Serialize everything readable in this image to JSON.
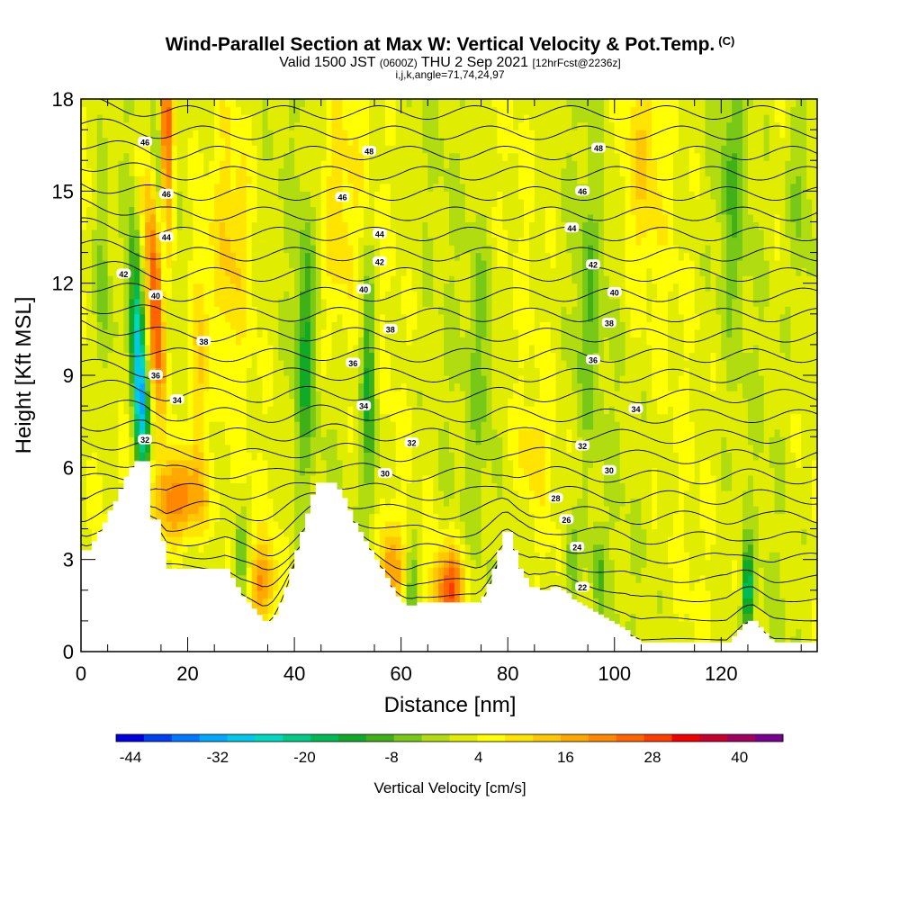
{
  "header": {
    "title_main": "Wind-Parallel Section at Max W: Vertical Velocity & Pot.Temp.",
    "title_mark": "(C)",
    "valid_pre": "Valid 1500 JST",
    "valid_z": "(0600Z)",
    "valid_date": "THU 2 Sep 2021",
    "valid_fcst": "[12hrFcst@2236z]",
    "indices": "i,j,k,angle=71,74,24,97"
  },
  "chart_data": {
    "type": "heatmap",
    "xlabel": "Distance [nm]",
    "ylabel": "Height [Kft MSL]",
    "xlim": [
      0,
      138
    ],
    "ylim": [
      0,
      18
    ],
    "xticks": [
      "0",
      "20",
      "40",
      "60",
      "80",
      "100",
      "120"
    ],
    "yticks": [
      "0",
      "3",
      "6",
      "9",
      "12",
      "15",
      "18"
    ],
    "xtick_values": [
      0,
      20,
      40,
      60,
      80,
      100,
      120
    ],
    "ytick_values": [
      0,
      3,
      6,
      9,
      12,
      15,
      18
    ],
    "terrain": {
      "x": [
        0,
        1,
        2,
        3,
        4,
        5,
        6,
        7,
        8,
        9,
        10,
        11,
        12,
        13,
        14,
        15,
        16,
        17,
        18,
        19,
        20,
        21,
        22,
        23,
        24,
        25,
        26,
        27,
        28,
        29,
        30,
        31,
        32,
        33,
        34,
        35,
        36,
        37,
        38,
        39,
        40,
        41,
        42,
        43,
        44,
        45,
        46,
        47,
        48,
        49,
        50,
        51,
        52,
        53,
        54,
        55,
        56,
        57,
        58,
        59,
        60,
        61,
        62,
        63,
        64,
        65,
        66,
        67,
        68,
        69,
        70,
        71,
        72,
        73,
        74,
        75,
        76,
        77,
        78,
        79,
        80,
        81,
        82,
        83,
        84,
        85,
        86,
        87,
        88,
        89,
        90,
        91,
        92,
        93,
        94,
        95,
        96,
        97,
        98,
        99,
        100,
        101,
        102,
        103,
        104,
        105,
        106,
        107,
        108,
        109,
        110,
        111,
        112,
        113,
        114,
        115,
        116,
        117,
        118,
        119,
        120,
        121,
        122,
        123,
        124,
        125,
        126,
        127,
        128,
        129,
        130,
        131,
        132,
        133,
        134,
        135,
        136,
        137,
        138
      ],
      "y": [
        3.3,
        3.3,
        3.6,
        3.9,
        4.2,
        4.6,
        4.9,
        5.3,
        5.7,
        6.0,
        6.2,
        6.2,
        6.2,
        4.3,
        4.3,
        3.6,
        2.7,
        2.7,
        2.7,
        2.7,
        2.7,
        2.7,
        2.7,
        2.7,
        2.7,
        2.7,
        2.7,
        2.7,
        2.4,
        2.1,
        1.8,
        1.6,
        1.4,
        1.2,
        1.0,
        1.0,
        1.2,
        1.6,
        2.1,
        2.7,
        3.3,
        3.9,
        4.5,
        5.1,
        5.5,
        5.5,
        5.5,
        5.5,
        5.3,
        5.0,
        4.6,
        4.2,
        3.9,
        3.6,
        3.3,
        3.0,
        2.7,
        2.4,
        2.1,
        1.8,
        1.6,
        1.5,
        1.5,
        1.6,
        1.6,
        1.6,
        1.6,
        1.6,
        1.6,
        1.6,
        1.6,
        1.6,
        1.6,
        1.6,
        1.6,
        1.8,
        2.2,
        2.7,
        3.3,
        3.9,
        3.9,
        3.3,
        2.7,
        2.4,
        2.1,
        2.1,
        2.0,
        2.0,
        2.1,
        2.1,
        2.0,
        1.9,
        1.7,
        1.6,
        1.5,
        1.4,
        1.3,
        1.2,
        1.1,
        1.0,
        0.9,
        0.8,
        0.7,
        0.5,
        0.4,
        0.3,
        0.3,
        0.3,
        0.3,
        0.3,
        0.3,
        0.3,
        0.3,
        0.3,
        0.3,
        0.3,
        0.3,
        0.3,
        0.3,
        0.3,
        0.3,
        0.3,
        0.5,
        0.7,
        0.9,
        1.0,
        1.0,
        0.8,
        0.6,
        0.4,
        0.3,
        0.3,
        0.3,
        0.3,
        0.3,
        0.3,
        0.3,
        0.3,
        0.3
      ]
    },
    "updrafts": [
      {
        "x": 14,
        "h": 11.5,
        "w": 2.0,
        "tilt": -0.28,
        "v": 28
      },
      {
        "x": 18,
        "h": 5.0,
        "w": 5.0,
        "tilt": 0.0,
        "v": 22
      },
      {
        "x": 16,
        "h": 17.0,
        "w": 1.3,
        "tilt": -0.05,
        "v": 24
      },
      {
        "x": 22,
        "h": 9.0,
        "w": 1.5,
        "tilt": 0.05,
        "v": 12
      },
      {
        "x": 34,
        "h": 2.3,
        "w": 2.5,
        "tilt": 0.0,
        "v": 16
      },
      {
        "x": 58,
        "h": 2.7,
        "w": 2.5,
        "tilt": 0.0,
        "v": 14
      },
      {
        "x": 69,
        "h": 2.0,
        "w": 3.0,
        "tilt": 0.0,
        "v": 26
      },
      {
        "x": 28,
        "h": 13.0,
        "w": 3.5,
        "tilt": 0.1,
        "v": 8
      },
      {
        "x": 48,
        "h": 14.0,
        "w": 4.0,
        "tilt": 0.1,
        "v": 8
      },
      {
        "x": 105,
        "h": 16.0,
        "w": 4.0,
        "tilt": 0.05,
        "v": 8
      },
      {
        "x": 85,
        "h": 6.5,
        "w": 3.0,
        "tilt": 0.0,
        "v": 7
      }
    ],
    "downdrafts": [
      {
        "x": 11,
        "h": 9.0,
        "w": 1.4,
        "tilt": -0.25,
        "v": -34
      },
      {
        "x": 15,
        "h": 14.0,
        "w": 1.0,
        "tilt": -0.25,
        "v": -14
      },
      {
        "x": 4,
        "h": 12.0,
        "w": 1.5,
        "tilt": 0.0,
        "v": -10
      },
      {
        "x": 42,
        "h": 10.0,
        "w": 1.8,
        "tilt": 0.1,
        "v": -14
      },
      {
        "x": 54,
        "h": 8.5,
        "w": 1.4,
        "tilt": -0.05,
        "v": -16
      },
      {
        "x": 30,
        "h": 3.0,
        "w": 1.5,
        "tilt": 0.0,
        "v": -12
      },
      {
        "x": 62,
        "h": 2.0,
        "w": 1.2,
        "tilt": 0.0,
        "v": -12
      },
      {
        "x": 92,
        "h": 2.8,
        "w": 1.2,
        "tilt": 0.0,
        "v": -12
      },
      {
        "x": 97,
        "h": 2.6,
        "w": 1.2,
        "tilt": 0.0,
        "v": -10
      },
      {
        "x": 125,
        "h": 2.0,
        "w": 1.0,
        "tilt": 0.0,
        "v": -22
      },
      {
        "x": 75,
        "h": 10.0,
        "w": 2.5,
        "tilt": 0.05,
        "v": -6
      },
      {
        "x": 95,
        "h": 11.0,
        "w": 2.5,
        "tilt": 0.05,
        "v": -8
      },
      {
        "x": 122,
        "h": 15.0,
        "w": 2.5,
        "tilt": 0.0,
        "v": -8
      },
      {
        "x": 135,
        "h": 15.0,
        "w": 2.5,
        "tilt": 0.0,
        "v": -8
      }
    ],
    "contour_labels": [
      {
        "text": "46",
        "x": 12,
        "y": 16.6
      },
      {
        "text": "46",
        "x": 16,
        "y": 14.9
      },
      {
        "text": "44",
        "x": 16,
        "y": 13.5
      },
      {
        "text": "42",
        "x": 8,
        "y": 12.3
      },
      {
        "text": "40",
        "x": 14,
        "y": 11.6
      },
      {
        "text": "38",
        "x": 23,
        "y": 10.1
      },
      {
        "text": "36",
        "x": 14,
        "y": 9.0
      },
      {
        "text": "34",
        "x": 18,
        "y": 8.2
      },
      {
        "text": "32",
        "x": 12,
        "y": 6.9
      },
      {
        "text": "48",
        "x": 54,
        "y": 16.3
      },
      {
        "text": "46",
        "x": 49,
        "y": 14.8
      },
      {
        "text": "44",
        "x": 56,
        "y": 13.6
      },
      {
        "text": "42",
        "x": 56,
        "y": 12.7
      },
      {
        "text": "40",
        "x": 53,
        "y": 11.8
      },
      {
        "text": "38",
        "x": 58,
        "y": 10.5
      },
      {
        "text": "36",
        "x": 51,
        "y": 9.4
      },
      {
        "text": "34",
        "x": 53,
        "y": 8.0
      },
      {
        "text": "32",
        "x": 62,
        "y": 6.8
      },
      {
        "text": "30",
        "x": 57,
        "y": 5.8
      },
      {
        "text": "48",
        "x": 97,
        "y": 16.4
      },
      {
        "text": "46",
        "x": 94,
        "y": 15.0
      },
      {
        "text": "44",
        "x": 92,
        "y": 13.8
      },
      {
        "text": "42",
        "x": 96,
        "y": 12.6
      },
      {
        "text": "40",
        "x": 100,
        "y": 11.7
      },
      {
        "text": "38",
        "x": 99,
        "y": 10.7
      },
      {
        "text": "36",
        "x": 96,
        "y": 9.5
      },
      {
        "text": "34",
        "x": 104,
        "y": 7.9
      },
      {
        "text": "32",
        "x": 94,
        "y": 6.7
      },
      {
        "text": "30",
        "x": 99,
        "y": 5.9
      },
      {
        "text": "28",
        "x": 89,
        "y": 5.0
      },
      {
        "text": "26",
        "x": 91,
        "y": 4.3
      },
      {
        "text": "24",
        "x": 93,
        "y": 3.4
      },
      {
        "text": "22",
        "x": 94,
        "y": 2.1
      }
    ],
    "colorbar": {
      "label": "Vertical Velocity [cm/s]",
      "tick_labels": [
        "-44",
        "-32",
        "-20",
        "-8",
        "4",
        "16",
        "28",
        "40"
      ],
      "tick_values": [
        -44,
        -32,
        -20,
        -8,
        4,
        16,
        28,
        40
      ],
      "min": -46,
      "max": 46,
      "colors": [
        "#0000e0",
        "#0040f0",
        "#0078ff",
        "#00a8ff",
        "#00c8e8",
        "#00d8c0",
        "#00cc88",
        "#00bb55",
        "#10aa28",
        "#40b018",
        "#78c818",
        "#b0dc10",
        "#e0ec00",
        "#ffff00",
        "#ffe400",
        "#ffc800",
        "#ffa800",
        "#ff8800",
        "#ff6400",
        "#ff3c00",
        "#f00000",
        "#c80030",
        "#a00060",
        "#780090"
      ]
    }
  }
}
